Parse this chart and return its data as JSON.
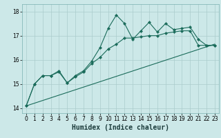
{
  "bg_color": "#cce8e8",
  "grid_color": "#aacccc",
  "line_color": "#1a6b5a",
  "xlabel": "Humidex (Indice chaleur)",
  "xlabel_fontsize": 7,
  "ylim": [
    13.8,
    18.3
  ],
  "xlim": [
    -0.5,
    23.5
  ],
  "yticks": [
    14,
    15,
    16,
    17,
    18
  ],
  "xticks": [
    0,
    1,
    2,
    3,
    4,
    5,
    6,
    7,
    8,
    9,
    10,
    11,
    12,
    13,
    14,
    15,
    16,
    17,
    18,
    19,
    20,
    21,
    22,
    23
  ],
  "line1_x": [
    0,
    1,
    2,
    3,
    4,
    5,
    6,
    7,
    8,
    9,
    10,
    11,
    12,
    13,
    14,
    15,
    16,
    17,
    18,
    19,
    20,
    21,
    22,
    23
  ],
  "line1_y": [
    14.1,
    15.0,
    15.35,
    15.35,
    15.55,
    15.05,
    15.35,
    15.55,
    15.95,
    16.5,
    17.3,
    17.85,
    17.5,
    16.85,
    17.2,
    17.55,
    17.15,
    17.5,
    17.25,
    17.3,
    17.35,
    16.85,
    16.6,
    16.6
  ],
  "line2_x": [
    0,
    1,
    2,
    3,
    4,
    5,
    6,
    7,
    8,
    9,
    10,
    11,
    12,
    13,
    14,
    15,
    16,
    17,
    18,
    19,
    20,
    21,
    22,
    23
  ],
  "line2_y": [
    14.1,
    15.0,
    15.35,
    15.35,
    15.5,
    15.05,
    15.3,
    15.5,
    15.85,
    16.1,
    16.45,
    16.65,
    16.9,
    16.9,
    16.95,
    17.0,
    17.0,
    17.1,
    17.15,
    17.2,
    17.2,
    16.6,
    16.6,
    16.6
  ],
  "line3_x": [
    0,
    23
  ],
  "line3_y": [
    14.1,
    16.65
  ]
}
